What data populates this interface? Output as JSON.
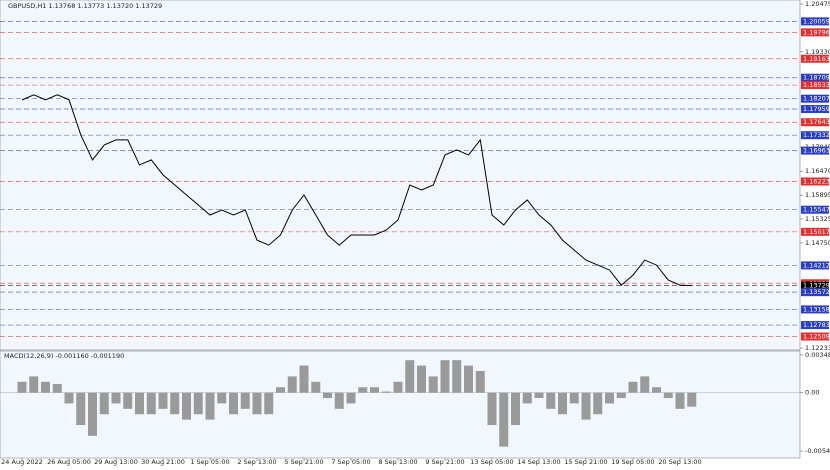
{
  "chart_data": [
    {
      "type": "line",
      "title": "GBPUSD,H1  1.13768 1.13773 1.13720 1.13729",
      "color": "#000000",
      "categories": [
        "24 Aug 2022",
        null,
        null,
        null,
        "26 Aug 05:00",
        null,
        null,
        null,
        "29 Aug 13:00",
        null,
        null,
        null,
        "30 Aug 21:00",
        null,
        null,
        null,
        "1 Sep 05:00",
        null,
        null,
        null,
        "2 Sep 13:00",
        null,
        null,
        null,
        "5 Sep 21:00",
        null,
        null,
        null,
        "7 Sep 05:00",
        null,
        null,
        null,
        "8 Sep 13:00",
        null,
        null,
        null,
        "9 Sep 21:00",
        null,
        null,
        null,
        "13 Sep 05:00",
        null,
        null,
        null,
        "14 Sep 13:00",
        null,
        null,
        null,
        "15 Sep 21:00",
        null,
        null,
        null,
        "19 Sep 05:00",
        null,
        null,
        null,
        "20 Sep 13:00",
        null
      ],
      "values": [
        1.18175,
        1.183,
        1.1818,
        1.183,
        1.1818,
        1.1734,
        1.1674,
        1.171,
        1.1722,
        1.1722,
        1.1662,
        1.1674,
        1.1638,
        1.1614,
        1.159,
        1.1566,
        1.1542,
        1.1554,
        1.1542,
        1.1554,
        1.1482,
        1.147,
        1.1494,
        1.1554,
        1.159,
        1.1542,
        1.1494,
        1.147,
        1.1494,
        1.1494,
        1.1494,
        1.1506,
        1.153,
        1.1614,
        1.1602,
        1.1614,
        1.1686,
        1.1698,
        1.1686,
        1.1722,
        1.1542,
        1.1518,
        1.1554,
        1.1578,
        1.1542,
        1.1518,
        1.1482,
        1.1458,
        1.1434,
        1.1422,
        1.141,
        1.1374,
        1.1398,
        1.1434,
        1.1422,
        1.1386,
        1.1374,
        1.13729
      ],
      "ylim": [
        1.12186,
        1.20571
      ],
      "yticks": [
        1.20475,
        {
          "value": 1.1933,
          "label": "1.19330"
        },
        1.17045,
        {
          "value": 1.1647,
          "label": "1.16470"
        },
        1.15895,
        1.15325,
        {
          "value": 1.1475,
          "label": "1.14750"
        },
        1.12233
      ],
      "levels": [
        {
          "value": 1.20059,
          "color": "#2b3fc4"
        },
        {
          "value": 1.19796,
          "color": "#e03030"
        },
        {
          "value": 1.19163,
          "color": "#e03030"
        },
        {
          "value": 1.18709,
          "color": "#2b3fc4"
        },
        {
          "value": 1.18533,
          "color": "#e03030"
        },
        {
          "value": 1.18207,
          "color": "#2b3fc4"
        },
        {
          "value": 1.17959,
          "color": "#2b3fc4"
        },
        {
          "value": 1.17643,
          "color": "#e03030"
        },
        {
          "value": 1.17332,
          "color": "#2b3fc4"
        },
        {
          "value": 1.16963,
          "color": "#2b3fc4"
        },
        {
          "value": 1.16223,
          "color": "#e03030"
        },
        {
          "value": 1.15547,
          "color": "#2b3fc4"
        },
        {
          "value": 1.15017,
          "color": "#e03030"
        },
        {
          "value": 1.14212,
          "color": "#2b3fc4"
        },
        {
          "value": 1.13785,
          "color": "#e03030"
        },
        {
          "value": 1.13729,
          "color": "#000000"
        },
        {
          "value": 1.13572,
          "color": "#2b3fc4"
        },
        {
          "value": 1.13158,
          "color": "#2b3fc4"
        },
        {
          "value": 1.12783,
          "color": "#2b3fc4"
        },
        {
          "value": 1.12509,
          "color": "#e03030"
        }
      ]
    },
    {
      "type": "bar",
      "title": "MACD(12,26,9) -0.001160 -0.001190",
      "color": "#9a9a9a",
      "values": [
        0.001,
        0.0015,
        0.001,
        0.0008,
        -0.001,
        -0.003,
        -0.004,
        -0.002,
        -0.001,
        -0.0015,
        -0.002,
        -0.002,
        -0.0015,
        -0.002,
        -0.0025,
        -0.002,
        -0.0025,
        -0.001,
        -0.002,
        -0.0015,
        -0.002,
        -0.002,
        0.0005,
        0.0015,
        0.0025,
        0.001,
        -0.0005,
        -0.0015,
        -0.001,
        0.0005,
        0.0005,
        0.0001,
        0.001,
        0.003,
        0.0025,
        0.0015,
        0.003,
        0.003,
        0.0025,
        0.002,
        -0.003,
        -0.005,
        -0.003,
        -0.001,
        -0.0005,
        -0.0015,
        -0.002,
        -0.001,
        -0.0025,
        -0.002,
        -0.001,
        -0.0005,
        0.001,
        0.0015,
        0.0005,
        -0.0005,
        -0.0015,
        -0.0013
      ],
      "ylim": [
        -0.00605,
        0.00385
      ],
      "yticks": [
        0.003485,
        {
          "value": 0,
          "label": "0.00"
        },
        -0.0054
      ]
    }
  ]
}
